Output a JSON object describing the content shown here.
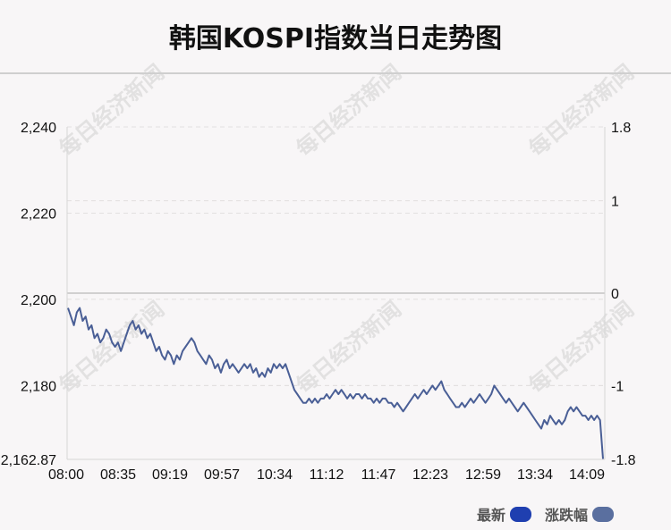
{
  "title": "韩国KOSPI指数当日走势图",
  "watermark": "每日经济新闻",
  "chart_data": {
    "type": "line",
    "y_left_ticks": [
      "2,240",
      "2,220",
      "2,200",
      "2,180",
      "2,162.87"
    ],
    "y_left_values": [
      2240,
      2220,
      2200,
      2180,
      2162.87
    ],
    "y_right_ticks": [
      "1.8",
      "1",
      "0",
      "-1",
      "-1.8"
    ],
    "y_right_values": [
      1.8,
      1,
      0,
      -1,
      -1.8
    ],
    "x_ticks": [
      "08:00",
      "08:35",
      "09:19",
      "09:57",
      "10:34",
      "11:12",
      "11:47",
      "12:23",
      "12:59",
      "13:34",
      "14:09"
    ],
    "ylim": [
      2162.87,
      2240
    ],
    "grid": true,
    "legend_position": "bottom-right",
    "legend": [
      {
        "name": "最新",
        "color": "#1f3fb0"
      },
      {
        "name": "涨跌幅",
        "color": "#5a6f9f"
      }
    ],
    "series": [
      {
        "values": [
          2198,
          2196,
          2194,
          2197,
          2198,
          2195,
          2196,
          2193,
          2194,
          2191,
          2192,
          2190,
          2191,
          2193,
          2192,
          2190,
          2189,
          2190,
          2188,
          2190,
          2192,
          2194,
          2195,
          2193,
          2194,
          2192,
          2193,
          2191,
          2192,
          2190,
          2188,
          2189,
          2187,
          2186,
          2188,
          2187,
          2185,
          2187,
          2186,
          2188,
          2189,
          2190,
          2191,
          2190,
          2188,
          2187,
          2186,
          2185,
          2187,
          2186,
          2184,
          2185,
          2183,
          2185,
          2186,
          2184,
          2185,
          2184,
          2183,
          2184,
          2185,
          2184,
          2185,
          2183,
          2184,
          2182,
          2183,
          2182,
          2184,
          2183,
          2185,
          2184,
          2185,
          2184,
          2185,
          2183,
          2181,
          2179,
          2178,
          2177,
          2176,
          2176,
          2177,
          2176,
          2177,
          2176,
          2177,
          2177,
          2178,
          2177,
          2178,
          2179,
          2178,
          2179,
          2178,
          2177,
          2178,
          2177,
          2178,
          2178,
          2177,
          2178,
          2177,
          2177,
          2176,
          2177,
          2176,
          2177,
          2177,
          2176,
          2176,
          2175,
          2176,
          2175,
          2174,
          2175,
          2176,
          2177,
          2178,
          2177,
          2178,
          2179,
          2178,
          2179,
          2180,
          2179,
          2180,
          2181,
          2179,
          2178,
          2177,
          2176,
          2175,
          2175,
          2176,
          2175,
          2176,
          2177,
          2176,
          2177,
          2178,
          2177,
          2176,
          2177,
          2178,
          2180,
          2179,
          2178,
          2177,
          2176,
          2177,
          2176,
          2175,
          2174,
          2175,
          2176,
          2175,
          2174,
          2173,
          2172,
          2171,
          2170,
          2172,
          2171,
          2173,
          2172,
          2171,
          2172,
          2171,
          2172,
          2174,
          2175,
          2174,
          2175,
          2174,
          2173,
          2173,
          2172,
          2173,
          2172,
          2173,
          2172,
          2163
        ],
        "right_axis_note": "涨跌幅 shown by right axis"
      }
    ]
  }
}
